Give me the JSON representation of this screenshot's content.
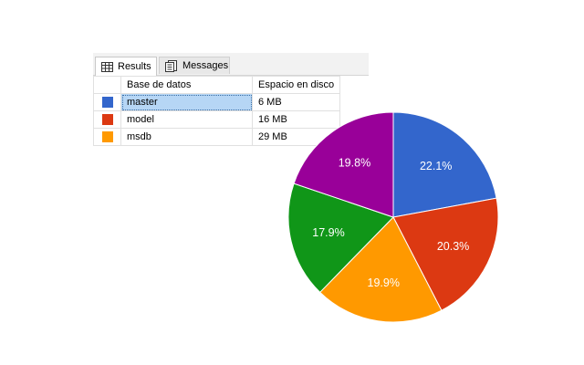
{
  "tabs": [
    {
      "label": "Results",
      "icon": "results-grid-icon",
      "active": true
    },
    {
      "label": "Messages",
      "icon": "messages-icon",
      "active": false
    }
  ],
  "grid": {
    "columns": [
      "",
      "Base de datos",
      "Espacio en disco"
    ],
    "rows": [
      {
        "color": "#3366cc",
        "name": "master",
        "space": "6 MB",
        "selected": true
      },
      {
        "color": "#dc3912",
        "name": "model",
        "space": "16 MB",
        "selected": false
      },
      {
        "color": "#ff9900",
        "name": "msdb",
        "space": "29 MB",
        "selected": false
      }
    ]
  },
  "chart_data": {
    "type": "pie",
    "slices": [
      {
        "label": "22.1%",
        "value": 22.1,
        "color": "#3366cc"
      },
      {
        "label": "20.3%",
        "value": 20.3,
        "color": "#dc3912"
      },
      {
        "label": "19.9%",
        "value": 19.9,
        "color": "#ff9900"
      },
      {
        "label": "17.9%",
        "value": 17.9,
        "color": "#109618"
      },
      {
        "label": "19.8%",
        "value": 19.8,
        "color": "#990099"
      }
    ],
    "start_angle_deg": 0,
    "direction": "clockwise"
  }
}
